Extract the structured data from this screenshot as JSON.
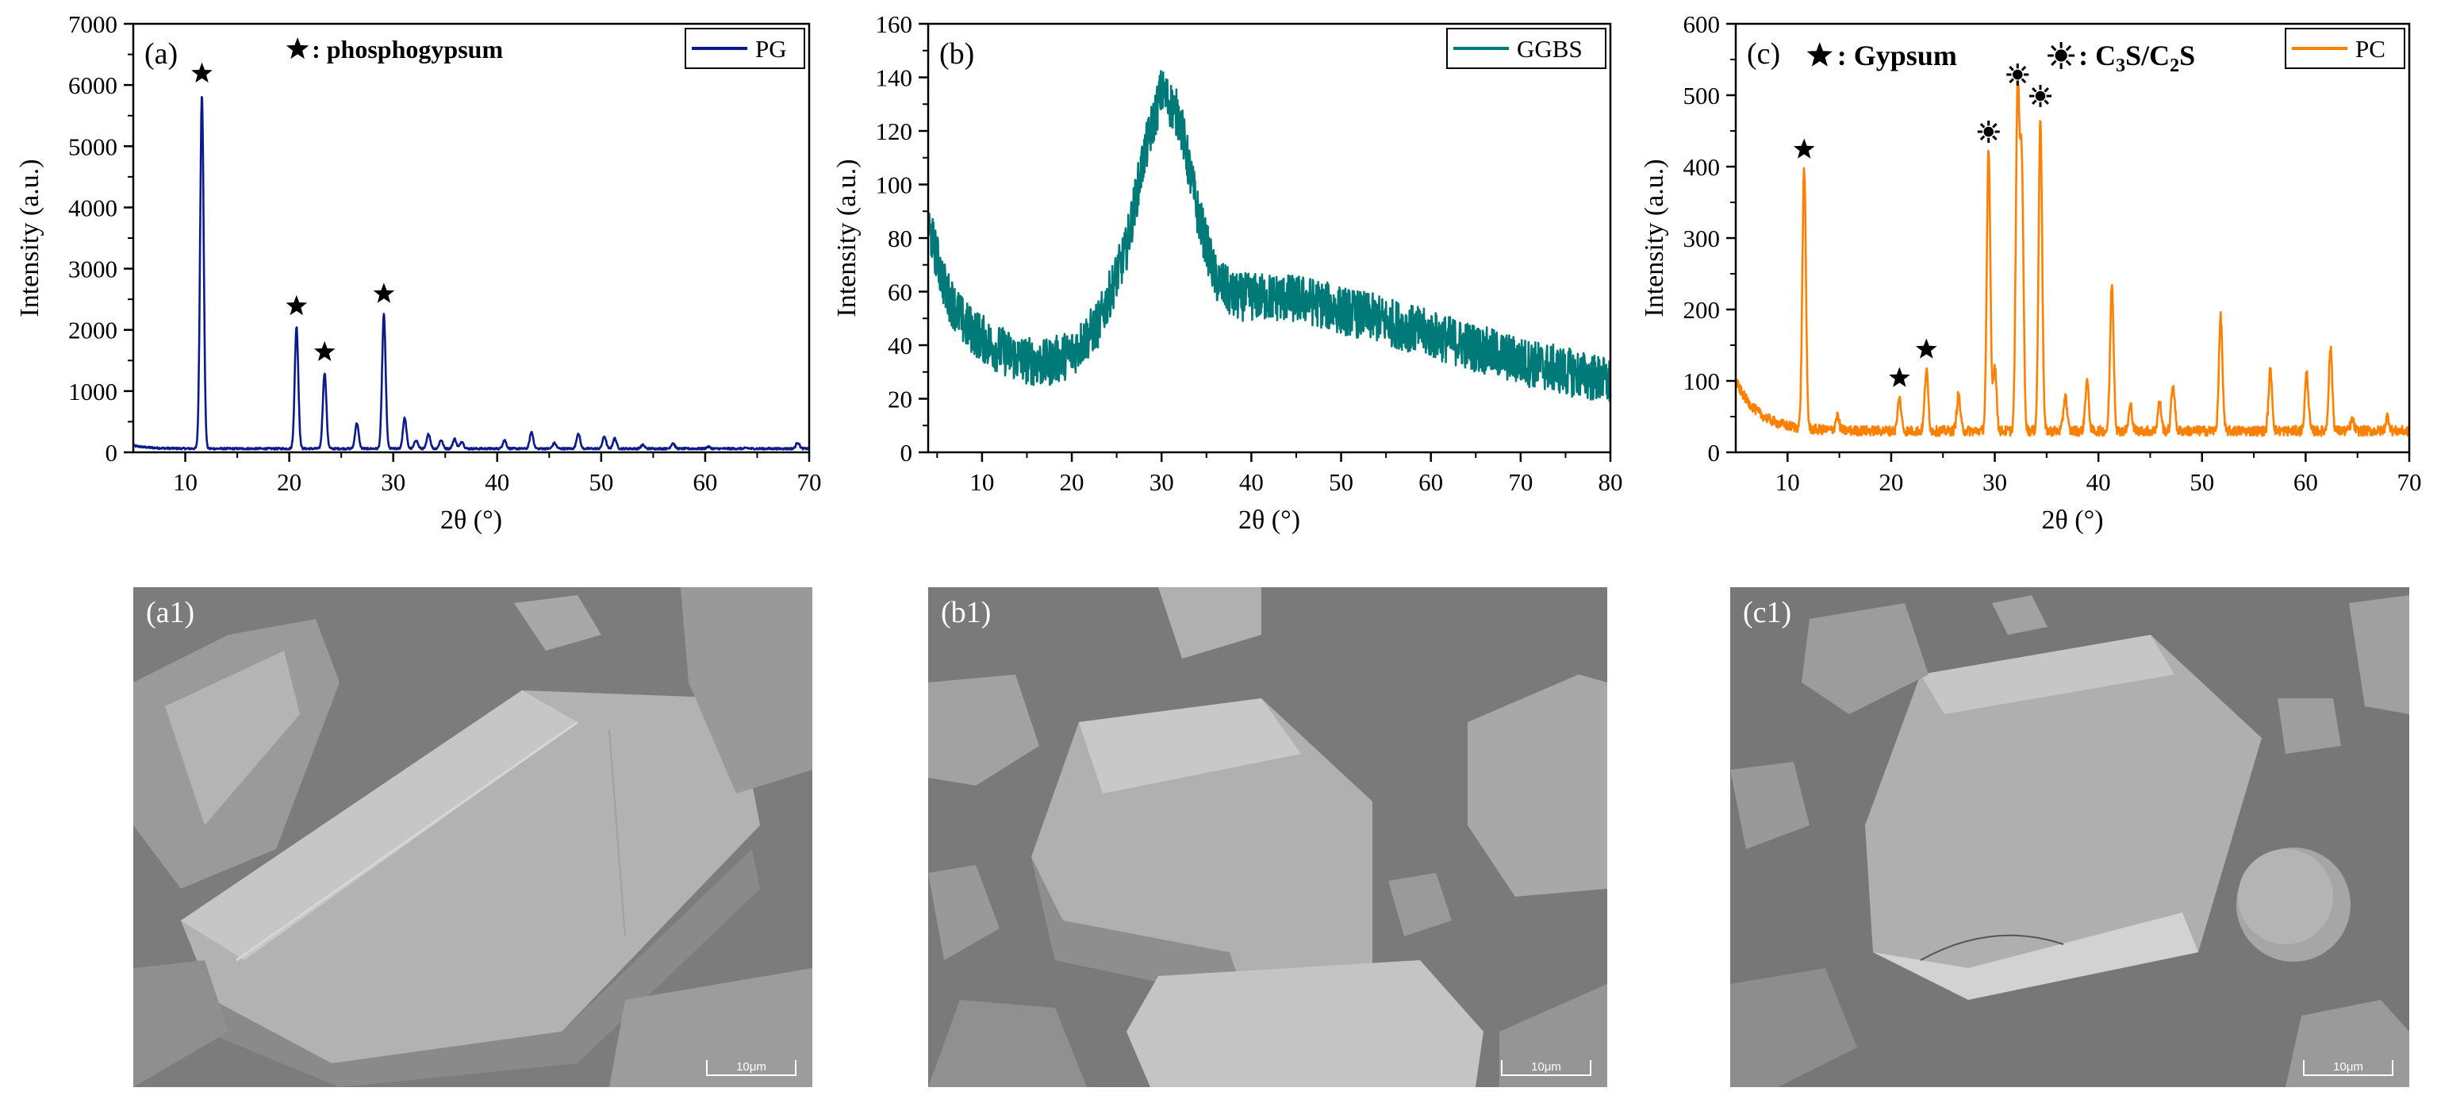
{
  "chart_data": [
    {
      "type": "line",
      "panel_label": "(a)",
      "xlabel": "2θ (°)",
      "ylabel": "Intensity (a.u.)",
      "xlim": [
        5,
        70
      ],
      "ylim": [
        0,
        7000
      ],
      "xticks": [
        10,
        20,
        30,
        40,
        50,
        60,
        70
      ],
      "yticks": [
        0,
        1000,
        2000,
        3000,
        4000,
        5000,
        6000,
        7000
      ],
      "legend_position": "top-right",
      "color": "#0b1a8c",
      "series": [
        {
          "name": "PG",
          "baseline": 60,
          "peaks": [
            [
              11.6,
              5850
            ],
            [
              20.7,
              2050
            ],
            [
              23.4,
              1300
            ],
            [
              26.5,
              480
            ],
            [
              29.1,
              2250
            ],
            [
              31.1,
              560
            ],
            [
              32.2,
              200
            ],
            [
              33.4,
              300
            ],
            [
              34.6,
              200
            ],
            [
              35.9,
              220
            ],
            [
              36.6,
              180
            ],
            [
              40.7,
              200
            ],
            [
              43.3,
              330
            ],
            [
              45.5,
              150
            ],
            [
              47.8,
              310
            ],
            [
              50.3,
              260
            ],
            [
              51.3,
              230
            ],
            [
              54.0,
              120
            ],
            [
              56.9,
              150
            ],
            [
              60.3,
              90
            ],
            [
              64.0,
              70
            ],
            [
              68.9,
              160
            ]
          ]
        }
      ],
      "annotation_legend": {
        "marker": "★",
        "text": ": phosphogypsum"
      },
      "peak_markers": [
        {
          "x": 11.6,
          "y": 5850,
          "symbol": "star"
        },
        {
          "x": 20.7,
          "y": 2050,
          "symbol": "star"
        },
        {
          "x": 23.4,
          "y": 1300,
          "symbol": "star"
        },
        {
          "x": 29.1,
          "y": 2250,
          "symbol": "star"
        }
      ]
    },
    {
      "type": "line",
      "panel_label": "(b)",
      "xlabel": "2θ (°)",
      "ylabel": "Intensity (a.u.)",
      "xlim": [
        4,
        80
      ],
      "ylim": [
        0,
        160
      ],
      "xticks": [
        10,
        20,
        30,
        40,
        50,
        60,
        70,
        80
      ],
      "yticks": [
        0,
        20,
        40,
        60,
        80,
        100,
        120,
        140,
        160
      ],
      "legend_position": "top-right",
      "color": "#007a78",
      "series": [
        {
          "name": "GGBS",
          "profile": [
            [
              4,
              85
            ],
            [
              6,
              60
            ],
            [
              8,
              48
            ],
            [
              11,
              40
            ],
            [
              14,
              35
            ],
            [
              17,
              33
            ],
            [
              20,
              37
            ],
            [
              23,
              48
            ],
            [
              26,
              75
            ],
            [
              28,
              110
            ],
            [
              30,
              135
            ],
            [
              32,
              125
            ],
            [
              34,
              90
            ],
            [
              36,
              65
            ],
            [
              38,
              58
            ],
            [
              42,
              58
            ],
            [
              46,
              57
            ],
            [
              50,
              53
            ],
            [
              54,
              50
            ],
            [
              58,
              46
            ],
            [
              62,
              42
            ],
            [
              66,
              38
            ],
            [
              70,
              34
            ],
            [
              74,
              31
            ],
            [
              78,
              28
            ],
            [
              80,
              26
            ]
          ],
          "noise": 9
        }
      ],
      "peak_markers": []
    },
    {
      "type": "line",
      "panel_label": "(c)",
      "xlabel": "2θ (°)",
      "ylabel": "Intensity (a.u.)",
      "xlim": [
        5,
        70
      ],
      "ylim": [
        0,
        600
      ],
      "xticks": [
        10,
        20,
        30,
        40,
        50,
        60,
        70
      ],
      "yticks": [
        0,
        100,
        200,
        300,
        400,
        500,
        600
      ],
      "legend_position": "top-right",
      "color": "#ff8000",
      "series": [
        {
          "name": "PC",
          "baseline": 30,
          "peaks": [
            [
              11.6,
              395
            ],
            [
              14.8,
              50
            ],
            [
              20.8,
              75
            ],
            [
              23.4,
              115
            ],
            [
              26.5,
              80
            ],
            [
              29.4,
              420
            ],
            [
              30.0,
              120
            ],
            [
              32.2,
              500
            ],
            [
              32.6,
              400
            ],
            [
              34.4,
              470
            ],
            [
              36.8,
              80
            ],
            [
              38.9,
              100
            ],
            [
              41.3,
              235
            ],
            [
              43.1,
              65
            ],
            [
              45.9,
              70
            ],
            [
              47.2,
              95
            ],
            [
              51.8,
              190
            ],
            [
              56.6,
              115
            ],
            [
              60.1,
              110
            ],
            [
              62.4,
              145
            ],
            [
              64.5,
              45
            ],
            [
              67.9,
              50
            ]
          ]
        }
      ],
      "annotation_legend": [
        {
          "marker": "★",
          "text": ": Gypsum"
        },
        {
          "marker": "✸",
          "text": ": C",
          "sub1": "3",
          "mid": "S/C",
          "sub2": "2",
          "end": "S"
        }
      ],
      "peak_markers": [
        {
          "x": 11.6,
          "y": 395,
          "symbol": "star"
        },
        {
          "x": 20.8,
          "y": 75,
          "symbol": "star"
        },
        {
          "x": 23.4,
          "y": 115,
          "symbol": "star"
        },
        {
          "x": 29.4,
          "y": 420,
          "symbol": "sun"
        },
        {
          "x": 32.2,
          "y": 500,
          "symbol": "sun"
        },
        {
          "x": 34.4,
          "y": 470,
          "symbol": "sun"
        }
      ]
    }
  ],
  "sem_images": [
    {
      "label": "(a1)",
      "scale_bar": "10μm"
    },
    {
      "label": "(b1)",
      "scale_bar": "10μm"
    },
    {
      "label": "(c1)",
      "scale_bar": "10μm"
    }
  ]
}
